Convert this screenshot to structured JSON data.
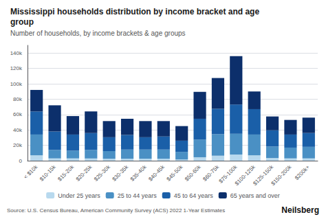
{
  "chart_data": {
    "type": "bar",
    "stacked": true,
    "title": "Mississippi households distribution by income bracket and age\ngroup",
    "subtitle": "Number of households, by income brackets & age groups",
    "source": "Source: U.S. Census Bureau, American Community Survey (ACS) 2022 1-Year Estimates",
    "annotations": [
      "Neilsberg"
    ],
    "categories": [
      "< $10k",
      "$10-15k",
      "$15-20k",
      "$20-25k",
      "$25-30k",
      "$30-35k",
      "$35-40k",
      "$40-45k",
      "$45-50k",
      "$50-60k",
      "$60-75k",
      "$75-100k",
      "$100-125k",
      "$125-150k",
      "$150-200k",
      "$200k+"
    ],
    "series": [
      {
        "name": "Under 25 years",
        "color": "#b8d9ee",
        "values": [
          7000,
          3000,
          3000,
          3000,
          2500,
          2500,
          2500,
          2500,
          1500,
          4500,
          6500,
          8000,
          7000,
          3500,
          3000,
          3000
        ]
      },
      {
        "name": "25 to 44 years",
        "color": "#4a90c4",
        "values": [
          27000,
          11000,
          10000,
          11000,
          10000,
          12000,
          12000,
          12000,
          10000,
          23000,
          28000,
          27000,
          27000,
          15000,
          14000,
          15000
        ]
      },
      {
        "name": "45 to 64 years",
        "color": "#1a5fa8",
        "values": [
          30000,
          24000,
          21000,
          22000,
          18000,
          19000,
          16000,
          17000,
          14500,
          27000,
          33000,
          38000,
          33000,
          21000,
          17000,
          18000
        ]
      },
      {
        "name": "65 years and over",
        "color": "#0c2f6b",
        "values": [
          28000,
          34000,
          24000,
          28000,
          21000,
          21000,
          21000,
          20000,
          19000,
          35000,
          40000,
          63000,
          23000,
          18000,
          19000,
          20000
        ]
      }
    ],
    "ylim": [
      0,
      150000
    ],
    "yticks": [
      0,
      {
        "value": 20000,
        "label": "20k"
      },
      {
        "value": 40000,
        "label": "40k"
      },
      {
        "value": 60000,
        "label": "60k"
      },
      {
        "value": 80000,
        "label": "80k"
      },
      {
        "value": 100000,
        "label": "100k"
      },
      {
        "value": 120000,
        "label": "120k"
      },
      {
        "value": 140000,
        "label": "140k"
      }
    ],
    "grid": true,
    "legend": "bottom"
  }
}
